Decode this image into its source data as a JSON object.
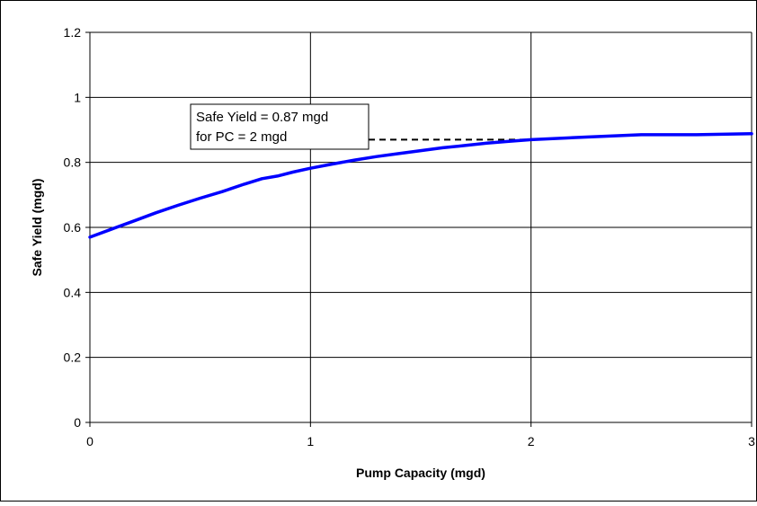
{
  "chart_data": {
    "type": "line",
    "title": "",
    "xlabel": "Pump Capacity (mgd)",
    "ylabel": "Safe Yield (mgd)",
    "xlim": [
      0,
      3
    ],
    "ylim": [
      0,
      1.2
    ],
    "x_ticks": [
      "0",
      "1",
      "2",
      "3"
    ],
    "y_ticks": [
      "0",
      "0.2",
      "0.4",
      "0.6",
      "0.8",
      "1",
      "1.2"
    ],
    "grid": true,
    "legend": "none",
    "series": [
      {
        "color": "#0000ff",
        "points": [
          [
            0.0,
            0.57
          ],
          [
            0.1,
            0.595
          ],
          [
            0.2,
            0.62
          ],
          [
            0.3,
            0.645
          ],
          [
            0.4,
            0.668
          ],
          [
            0.5,
            0.69
          ],
          [
            0.6,
            0.71
          ],
          [
            0.7,
            0.733
          ],
          [
            0.78,
            0.75
          ],
          [
            0.85,
            0.758
          ],
          [
            0.92,
            0.77
          ],
          [
            1.0,
            0.782
          ],
          [
            1.1,
            0.795
          ],
          [
            1.2,
            0.807
          ],
          [
            1.3,
            0.818
          ],
          [
            1.4,
            0.827
          ],
          [
            1.5,
            0.836
          ],
          [
            1.6,
            0.845
          ],
          [
            1.7,
            0.852
          ],
          [
            1.8,
            0.859
          ],
          [
            1.9,
            0.865
          ],
          [
            2.0,
            0.87
          ],
          [
            2.25,
            0.878
          ],
          [
            2.5,
            0.885
          ],
          [
            2.75,
            0.885
          ],
          [
            3.0,
            0.888
          ]
        ]
      }
    ],
    "annotation": {
      "lines": [
        "Safe Yield = 0.87 mgd",
        "for PC = 2 mgd"
      ],
      "reference_x": 2,
      "reference_y": 0.87,
      "leader_style": "dashed",
      "leader_color": "#000000"
    }
  }
}
